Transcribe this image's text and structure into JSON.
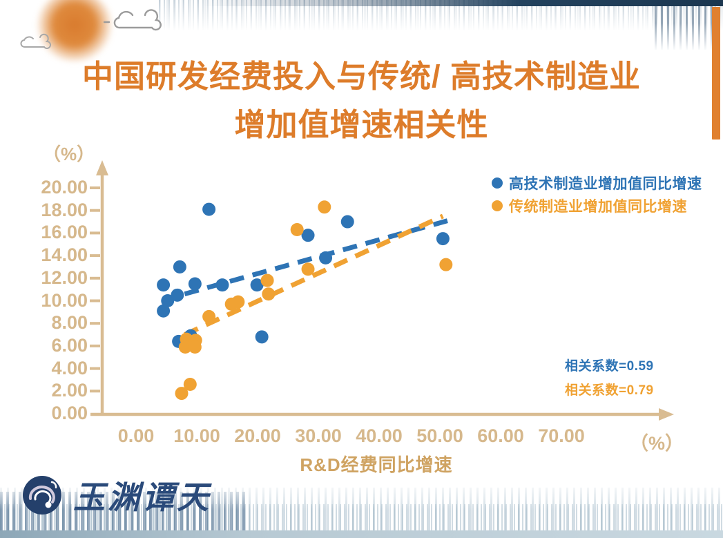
{
  "title": {
    "line1": "中国研发经费投入与传统/ 高技术制造业",
    "line2": "增加值增速相关性",
    "color": "#dd7c2a"
  },
  "legend": [
    {
      "label": "高技术制造业增加值同比增速",
      "color": "#2e74b5"
    },
    {
      "label": "传统制造业增加值同比增速",
      "color": "#f0a233"
    }
  ],
  "annotations": [
    {
      "text": "相关系数=0.59",
      "color": "#2e74b5"
    },
    {
      "text": "相关系数=0.79",
      "color": "#f0a233"
    }
  ],
  "axes": {
    "y_unit": "（%）",
    "x_unit": "（%）",
    "x_title": "R&D经费同比增速",
    "axis_color": "#d9bc92"
  },
  "logo": {
    "text": "玉渊谭天"
  },
  "chart_data": {
    "type": "scatter",
    "title": "中国研发经费投入与传统/高技术制造业增加值增速相关性",
    "xlabel": "R&D经费同比增速 (%)",
    "ylabel": "(%)",
    "xlim": [
      0,
      75
    ],
    "ylim": [
      0,
      21
    ],
    "grid": false,
    "legend_position": "top-right",
    "x_tick_values": [
      0,
      10,
      20,
      30,
      40,
      50,
      60,
      70
    ],
    "x_tick_labels": [
      "0.00",
      "10.00",
      "20.00",
      "30.00",
      "40.00",
      "50.00",
      "60.00",
      "70.00"
    ],
    "y_tick_values": [
      0,
      2,
      4,
      6,
      8,
      10,
      12,
      14,
      16,
      18,
      20
    ],
    "y_tick_labels": [
      "0.00",
      "2.00",
      "4.00",
      "6.00",
      "8.00",
      "10.00",
      "12.00",
      "14.00",
      "16.00",
      "18.00",
      "20.00"
    ],
    "series": [
      {
        "name": "高技术制造业增加值同比增速",
        "color": "#2e74b5",
        "correlation": 0.59,
        "points": [
          [
            12.0,
            18.1
          ],
          [
            34.8,
            17.0
          ],
          [
            28.3,
            15.8
          ],
          [
            50.5,
            15.5
          ],
          [
            31.2,
            13.8
          ],
          [
            7.2,
            13.0
          ],
          [
            9.7,
            11.5
          ],
          [
            4.5,
            11.4
          ],
          [
            14.2,
            11.4
          ],
          [
            19.9,
            11.4
          ],
          [
            6.8,
            10.5
          ],
          [
            5.2,
            10.0
          ],
          [
            4.5,
            9.1
          ],
          [
            9.0,
            6.9
          ],
          [
            20.7,
            6.8
          ],
          [
            7.0,
            6.4
          ]
        ],
        "trendline": {
          "from": [
            8,
            10.6
          ],
          "to": [
            52,
            17.2
          ],
          "style": "dashed"
        }
      },
      {
        "name": "传统制造业增加值同比增速",
        "color": "#f0a233",
        "correlation": 0.79,
        "points": [
          [
            31.0,
            18.3
          ],
          [
            26.5,
            16.3
          ],
          [
            51.0,
            13.2
          ],
          [
            28.3,
            12.8
          ],
          [
            21.6,
            11.8
          ],
          [
            21.8,
            10.6
          ],
          [
            16.8,
            9.9
          ],
          [
            15.7,
            9.7
          ],
          [
            12.0,
            8.6
          ],
          [
            8.3,
            6.6
          ],
          [
            9.8,
            6.5
          ],
          [
            8.1,
            5.9
          ],
          [
            9.7,
            5.9
          ],
          [
            8.9,
            2.6
          ],
          [
            7.5,
            1.8
          ]
        ],
        "trendline": {
          "from": [
            8,
            7.0
          ],
          "to": [
            50.5,
            17.5
          ],
          "style": "dashed"
        }
      }
    ]
  }
}
